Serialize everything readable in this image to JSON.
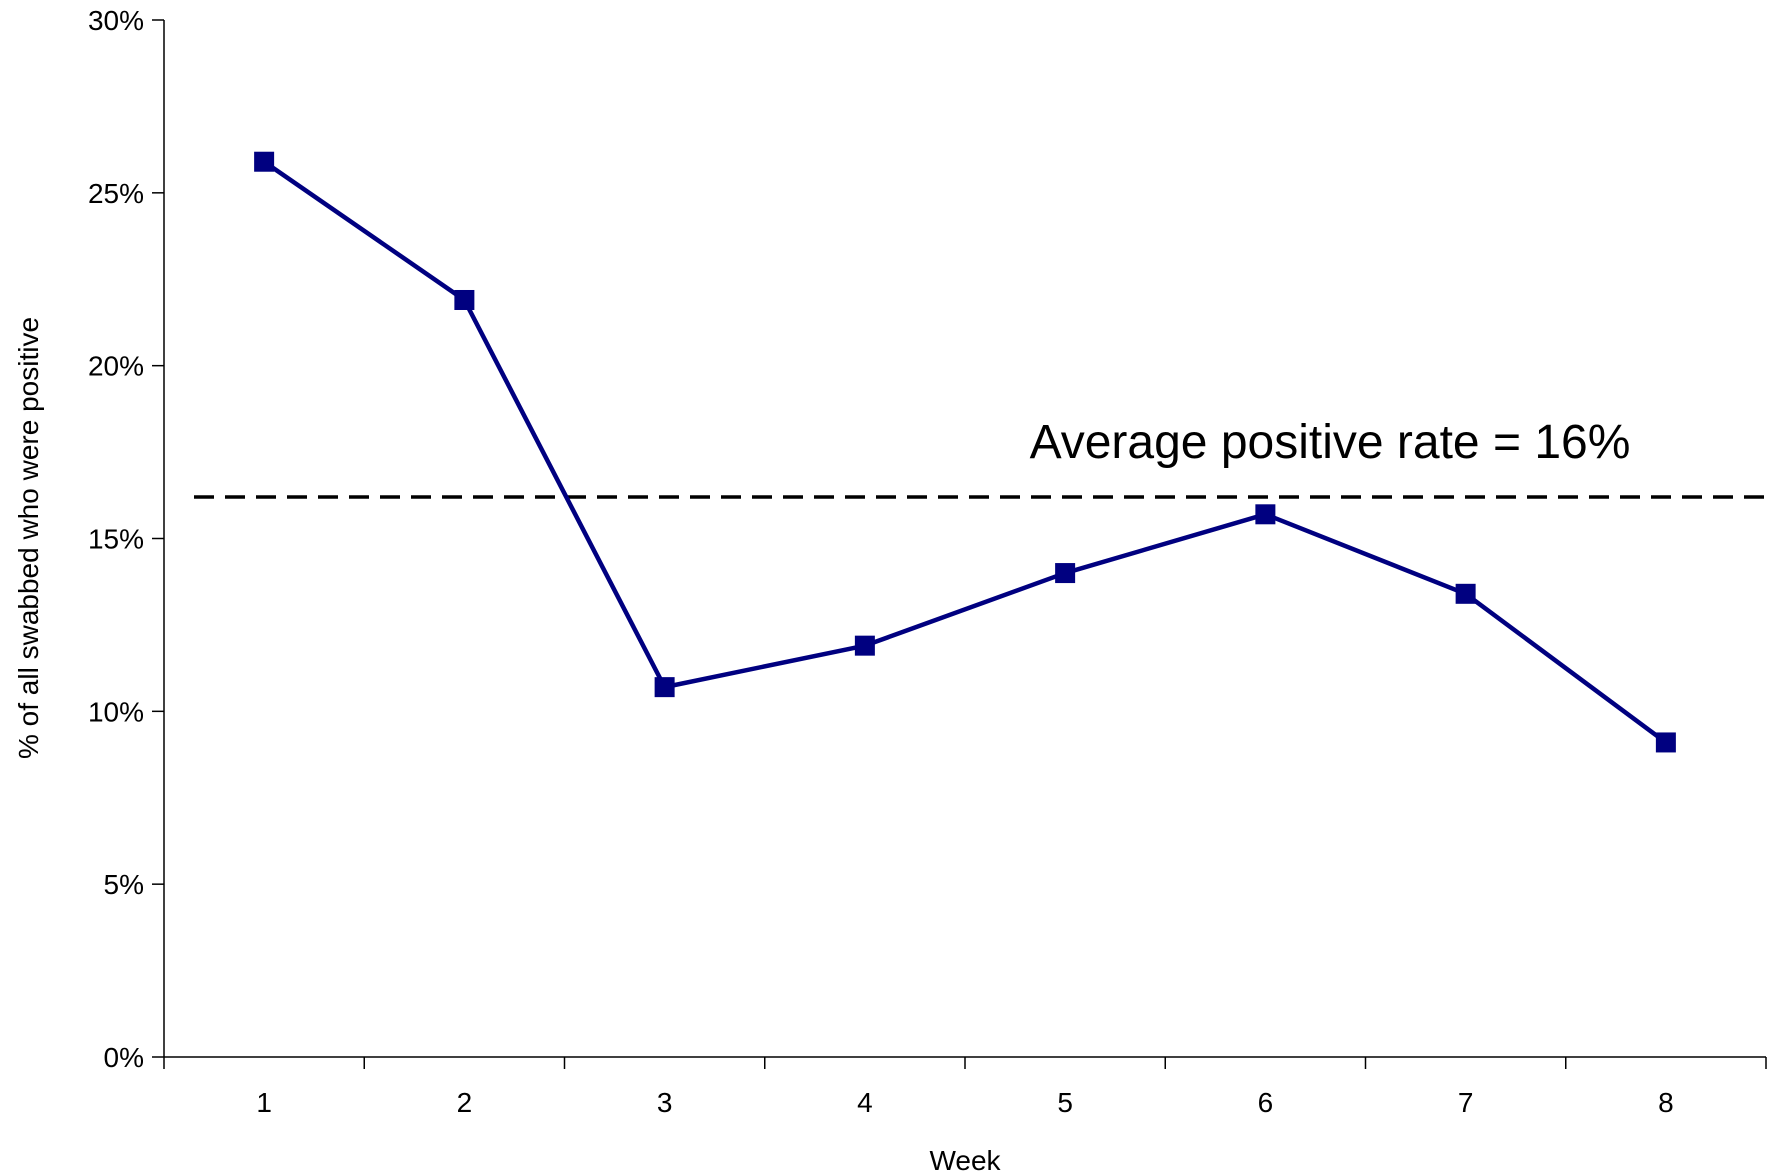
{
  "chart_data": {
    "type": "line",
    "title": "",
    "xlabel": "Week",
    "ylabel": "% of all swabbed who were positive",
    "categories": [
      "1",
      "2",
      "3",
      "4",
      "5",
      "6",
      "7",
      "8"
    ],
    "series": [
      {
        "values": [
          25.9,
          21.9,
          10.7,
          11.9,
          14.0,
          15.7,
          13.4,
          9.1
        ]
      }
    ],
    "ylim": [
      0,
      30
    ],
    "yticks": [
      0,
      5,
      10,
      15,
      20,
      25,
      30
    ],
    "ytick_labels": [
      "0%",
      "5%",
      "10%",
      "15%",
      "20%",
      "25%",
      "30%"
    ],
    "grid": false,
    "reference_line": {
      "value": 16.2,
      "style": "dashed",
      "color": "#000000"
    },
    "annotation": "Average positive rate = 16%",
    "colors": {
      "series": "#000080",
      "axis": "#000000"
    }
  }
}
